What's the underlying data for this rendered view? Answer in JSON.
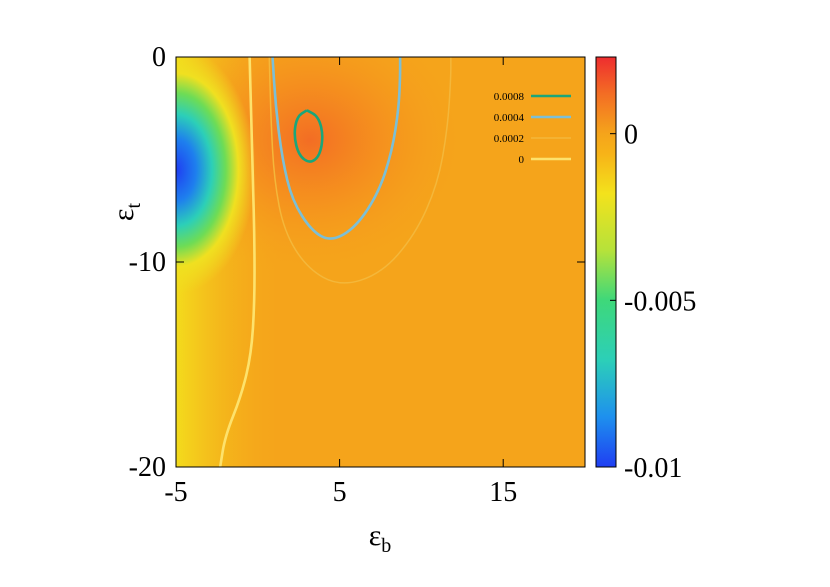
{
  "chart_data": {
    "type": "heatmap",
    "title": "",
    "xlabel": "εb",
    "xlabel_main": "ε",
    "xlabel_sub": "b",
    "ylabel": "εt",
    "ylabel_main": "ε",
    "ylabel_sub": "t",
    "xlim": [
      -5,
      20
    ],
    "ylim": [
      -20,
      0
    ],
    "x_ticks": [
      {
        "value": -5,
        "label": "-5"
      },
      {
        "value": 5,
        "label": "5"
      },
      {
        "value": 15,
        "label": "15"
      }
    ],
    "y_ticks": [
      {
        "value": 0,
        "label": "0"
      },
      {
        "value": -10,
        "label": "-10"
      },
      {
        "value": -20,
        "label": "-20"
      }
    ],
    "colorbar": {
      "range": [
        -0.01,
        0.0023
      ],
      "ticks": [
        {
          "value": 0,
          "label": "0"
        },
        {
          "value": -0.005,
          "label": "-0.005"
        },
        {
          "value": -0.01,
          "label": "-0.01"
        }
      ],
      "stops": [
        {
          "value": -0.01,
          "color": "#1f3ef2"
        },
        {
          "value": -0.0085,
          "color": "#1e90ee"
        },
        {
          "value": -0.0068,
          "color": "#2ccfb8"
        },
        {
          "value": -0.005,
          "color": "#3ed87a"
        },
        {
          "value": -0.0035,
          "color": "#b6e23a"
        },
        {
          "value": -0.0018,
          "color": "#f3e21c"
        },
        {
          "value": -0.0006,
          "color": "#f7b318"
        },
        {
          "value": 0,
          "color": "#f5a41b"
        },
        {
          "value": 0.0012,
          "color": "#f36d24"
        },
        {
          "value": 0.0023,
          "color": "#ee2d2f"
        }
      ]
    },
    "legend": {
      "placement": "top-right",
      "entries": [
        {
          "label": "0.0008",
          "color": "#1aa67a"
        },
        {
          "label": "0.0004",
          "color": "#7cbfd6"
        },
        {
          "label": "0.0002",
          "color": "#f4b73a"
        },
        {
          "label": "0",
          "color": "#fde26c"
        }
      ]
    },
    "contours": [
      {
        "level": "0.0008",
        "color": "#1aa67a",
        "points": [
          [
            3.0,
            -2.6
          ],
          [
            3.7,
            -2.9
          ],
          [
            4.0,
            -3.8
          ],
          [
            3.8,
            -4.8
          ],
          [
            3.2,
            -5.2
          ],
          [
            2.5,
            -4.8
          ],
          [
            2.2,
            -3.8
          ],
          [
            2.4,
            -2.9
          ],
          [
            3.0,
            -2.6
          ]
        ]
      },
      {
        "level": "0.0004",
        "color": "#7cbfd6",
        "points": [
          [
            0.9,
            0
          ],
          [
            1.1,
            -2.5
          ],
          [
            1.5,
            -5.0
          ],
          [
            2.1,
            -7.0
          ],
          [
            3.3,
            -8.5
          ],
          [
            4.5,
            -9.0
          ],
          [
            6.0,
            -8.3
          ],
          [
            7.4,
            -6.6
          ],
          [
            8.2,
            -4.6
          ],
          [
            8.6,
            -2.6
          ],
          [
            8.7,
            -1.0
          ],
          [
            8.7,
            0
          ]
        ]
      },
      {
        "level": "0.0002",
        "color": "#f4b73a",
        "points": [
          [
            0.7,
            0
          ],
          [
            0.8,
            -3.0
          ],
          [
            1.0,
            -6.0
          ],
          [
            1.6,
            -8.5
          ],
          [
            3.0,
            -10.3
          ],
          [
            5.0,
            -11.2
          ],
          [
            7.5,
            -10.6
          ],
          [
            9.6,
            -8.7
          ],
          [
            11.0,
            -6.2
          ],
          [
            11.6,
            -3.5
          ],
          [
            11.8,
            -1.0
          ],
          [
            11.8,
            0
          ]
        ]
      },
      {
        "level": "0",
        "color": "#fde26c",
        "points": [
          [
            -0.5,
            0
          ],
          [
            -0.4,
            -3.0
          ],
          [
            -0.3,
            -6.0
          ],
          [
            -0.2,
            -9.0
          ],
          [
            -0.2,
            -12.0
          ],
          [
            -0.4,
            -14.5
          ],
          [
            -1.0,
            -16.5
          ],
          [
            -2.0,
            -18.5
          ],
          [
            -2.3,
            -20.0
          ]
        ]
      }
    ]
  }
}
